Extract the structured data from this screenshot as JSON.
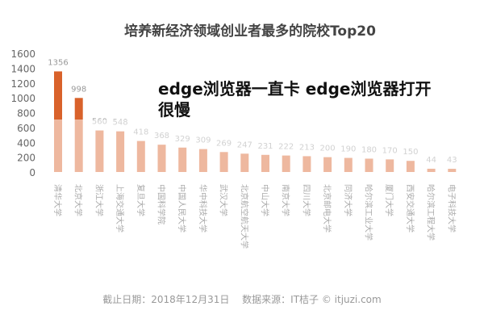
{
  "chart_data": {
    "type": "bar",
    "title": "培养新经济领域创业者最多的院校Top20",
    "categories": [
      "清华大学",
      "北京大学",
      "浙江大学",
      "上海交通大学",
      "复旦大学",
      "中国科学院",
      "中国人民大学",
      "华中科技大学",
      "武汉大学",
      "北京航空航天大学",
      "中山大学",
      "南京大学",
      "四川大学",
      "北京邮电大学",
      "同济大学",
      "哈尔滨工业大学",
      "厦门大学",
      "西安交通大学",
      "哈尔滨工程大学",
      "电子科技大学"
    ],
    "values": [
      1356,
      998,
      560,
      548,
      418,
      368,
      329,
      309,
      269,
      247,
      231,
      222,
      213,
      200,
      190,
      180,
      170,
      150,
      44,
      43
    ],
    "ylim": [
      0,
      1600
    ],
    "yticks": [
      0,
      200,
      400,
      600,
      800,
      1000,
      1200,
      1400,
      1600
    ],
    "grid": false,
    "bar_color": "#d9622b",
    "footer": "截止日期：2018年12月31日　 数据来源：IT桔子 © itjuzi.com"
  },
  "overlay": {
    "line1": "edge浏览器一直卡 edge浏览器打开",
    "line2": "很慢"
  }
}
